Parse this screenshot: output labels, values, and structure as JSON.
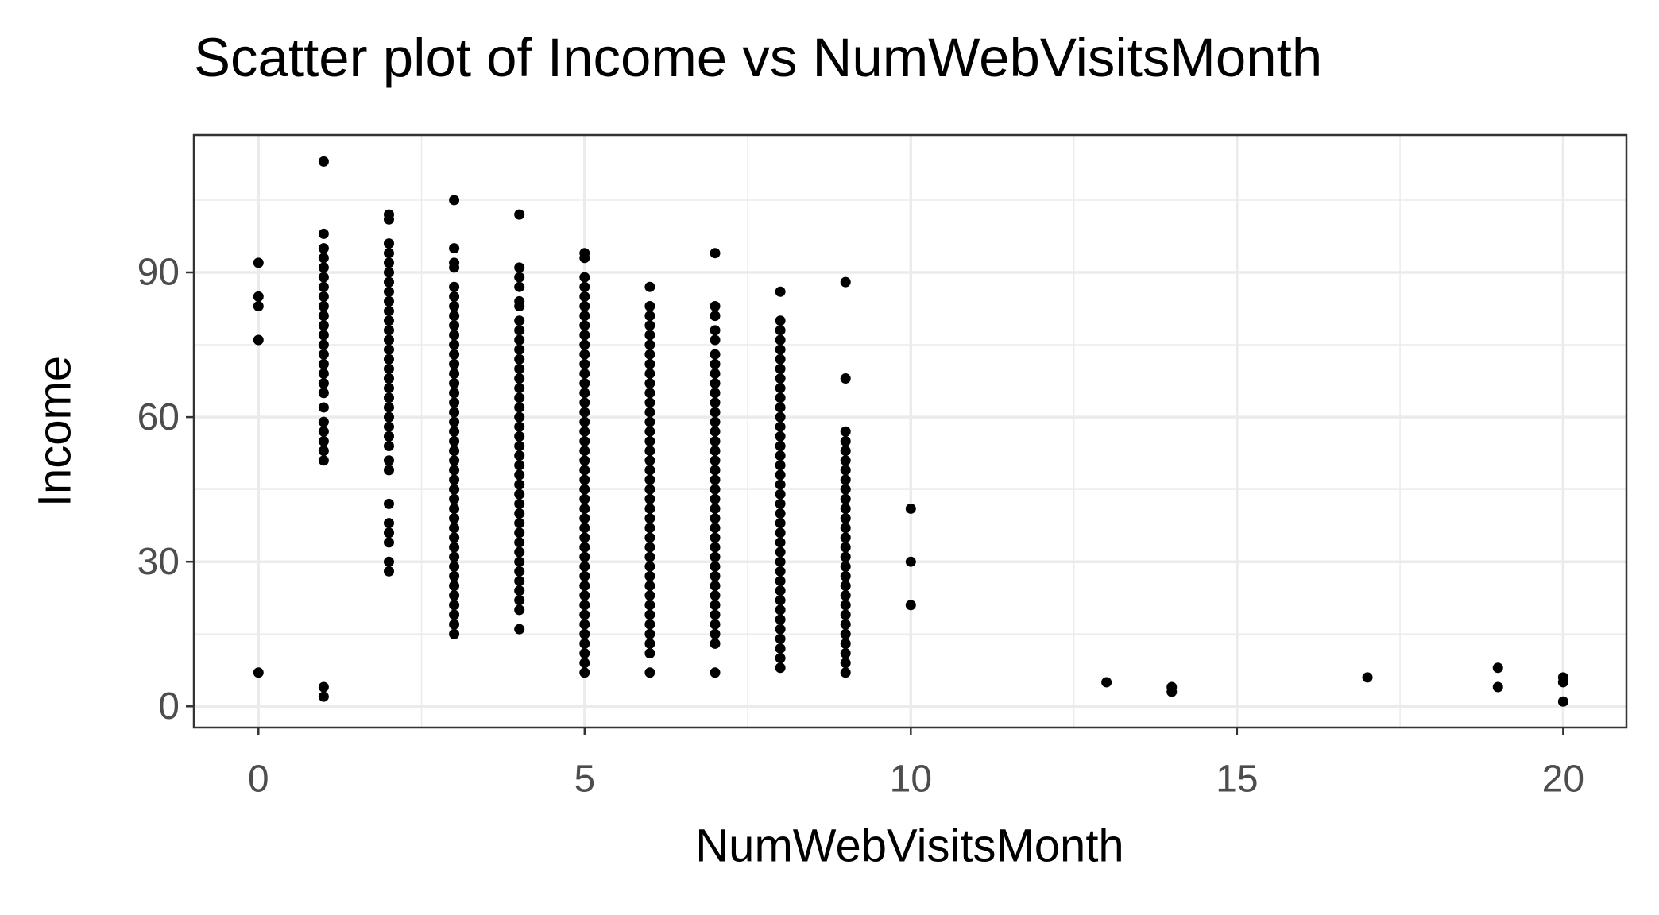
{
  "chart_data": {
    "type": "scatter",
    "title": "Scatter plot of Income vs NumWebVisitsMonth",
    "x_label": "NumWebVisitsMonth",
    "y_label": "Income",
    "color": "#000000",
    "xlim": [
      -0.99,
      20.97
    ],
    "ylim": [
      -4.4,
      118.5
    ],
    "xticks": [
      0,
      5,
      10,
      15,
      20
    ],
    "yticks": [
      0,
      30,
      60,
      90
    ],
    "minor_xticks": [
      2.5,
      7.5,
      12.5,
      17.5
    ],
    "minor_yticks": [
      15,
      45,
      75,
      105
    ],
    "grid": true,
    "x": [
      0,
      0,
      0,
      0,
      0,
      1,
      1,
      1,
      1,
      1,
      1,
      1,
      1,
      1,
      1,
      1,
      1,
      1,
      1,
      1,
      1,
      1,
      1,
      1,
      1,
      1,
      1,
      1,
      1,
      1,
      1,
      2,
      2,
      2,
      2,
      2,
      2,
      2,
      2,
      2,
      2,
      2,
      2,
      2,
      2,
      2,
      2,
      2,
      2,
      2,
      2,
      2,
      2,
      2,
      2,
      2,
      2,
      2,
      2,
      2,
      2,
      2,
      2,
      3,
      3,
      3,
      3,
      3,
      3,
      3,
      3,
      3,
      3,
      3,
      3,
      3,
      3,
      3,
      3,
      3,
      3,
      3,
      3,
      3,
      3,
      3,
      3,
      3,
      3,
      3,
      3,
      3,
      3,
      3,
      3,
      3,
      3,
      3,
      3,
      3,
      3,
      3,
      3,
      3,
      4,
      4,
      4,
      4,
      4,
      4,
      4,
      4,
      4,
      4,
      4,
      4,
      4,
      4,
      4,
      4,
      4,
      4,
      4,
      4,
      4,
      4,
      4,
      4,
      4,
      4,
      4,
      4,
      4,
      4,
      4,
      4,
      4,
      4,
      4,
      4,
      4,
      4,
      5,
      5,
      5,
      5,
      5,
      5,
      5,
      5,
      5,
      5,
      5,
      5,
      5,
      5,
      5,
      5,
      5,
      5,
      5,
      5,
      5,
      5,
      5,
      5,
      5,
      5,
      5,
      5,
      5,
      5,
      5,
      5,
      5,
      5,
      5,
      5,
      5,
      5,
      5,
      5,
      5,
      5,
      5,
      5,
      6,
      6,
      6,
      6,
      6,
      6,
      6,
      6,
      6,
      6,
      6,
      6,
      6,
      6,
      6,
      6,
      6,
      6,
      6,
      6,
      6,
      6,
      6,
      6,
      6,
      6,
      6,
      6,
      6,
      6,
      6,
      6,
      6,
      6,
      6,
      6,
      6,
      6,
      6,
      7,
      7,
      7,
      7,
      7,
      7,
      7,
      7,
      7,
      7,
      7,
      7,
      7,
      7,
      7,
      7,
      7,
      7,
      7,
      7,
      7,
      7,
      7,
      7,
      7,
      7,
      7,
      7,
      7,
      7,
      7,
      7,
      7,
      7,
      7,
      7,
      7,
      8,
      8,
      8,
      8,
      8,
      8,
      8,
      8,
      8,
      8,
      8,
      8,
      8,
      8,
      8,
      8,
      8,
      8,
      8,
      8,
      8,
      8,
      8,
      8,
      8,
      8,
      8,
      8,
      8,
      8,
      8,
      8,
      8,
      8,
      8,
      8,
      8,
      8,
      9,
      9,
      9,
      9,
      9,
      9,
      9,
      9,
      9,
      9,
      9,
      9,
      9,
      9,
      9,
      9,
      9,
      9,
      9,
      9,
      9,
      9,
      9,
      9,
      9,
      9,
      9,
      9,
      10,
      10,
      10,
      13,
      14,
      14,
      17,
      19,
      19,
      20,
      20,
      20
    ],
    "values": [
      92,
      85,
      83,
      76,
      7,
      113,
      98,
      95,
      93,
      91,
      89,
      87,
      85,
      83,
      81,
      79,
      77,
      75,
      73,
      71,
      69,
      67,
      65,
      62,
      59,
      57,
      55,
      53,
      51,
      4,
      2,
      102,
      101,
      96,
      94,
      92,
      90,
      88,
      86,
      84,
      82,
      80,
      78,
      76,
      74,
      72,
      70,
      68,
      66,
      64,
      62,
      60,
      58,
      56,
      54,
      51,
      49,
      42,
      38,
      36,
      34,
      30,
      28,
      105,
      95,
      92,
      91,
      87,
      85,
      83,
      81,
      79,
      77,
      75,
      73,
      71,
      69,
      67,
      65,
      63,
      61,
      59,
      57,
      55,
      53,
      51,
      49,
      47,
      45,
      43,
      41,
      39,
      37,
      35,
      33,
      31,
      29,
      27,
      25,
      23,
      21,
      19,
      17,
      15,
      102,
      91,
      89,
      87,
      84,
      83,
      80,
      78,
      76,
      74,
      72,
      70,
      68,
      66,
      64,
      62,
      60,
      58,
      56,
      54,
      52,
      50,
      48,
      46,
      44,
      42,
      40,
      38,
      36,
      34,
      32,
      30,
      28,
      26,
      24,
      22,
      20,
      16,
      94,
      93,
      89,
      87,
      85,
      83,
      81,
      79,
      77,
      75,
      73,
      71,
      69,
      67,
      65,
      63,
      61,
      59,
      57,
      55,
      53,
      51,
      49,
      47,
      45,
      43,
      41,
      39,
      37,
      35,
      33,
      31,
      29,
      27,
      25,
      23,
      21,
      19,
      17,
      15,
      13,
      11,
      9,
      7,
      87,
      83,
      81,
      79,
      77,
      75,
      73,
      71,
      69,
      67,
      65,
      63,
      61,
      59,
      57,
      55,
      53,
      51,
      49,
      47,
      45,
      43,
      41,
      39,
      37,
      35,
      33,
      31,
      29,
      27,
      25,
      23,
      21,
      19,
      17,
      15,
      13,
      11,
      7,
      94,
      83,
      81,
      78,
      76,
      73,
      71,
      69,
      67,
      65,
      63,
      61,
      59,
      57,
      55,
      53,
      51,
      49,
      47,
      45,
      43,
      41,
      39,
      37,
      35,
      33,
      31,
      29,
      27,
      25,
      23,
      21,
      19,
      17,
      15,
      13,
      7,
      86,
      80,
      78,
      76,
      74,
      72,
      70,
      68,
      66,
      64,
      62,
      60,
      58,
      56,
      54,
      52,
      50,
      48,
      46,
      44,
      42,
      40,
      38,
      36,
      34,
      32,
      30,
      28,
      26,
      24,
      22,
      20,
      18,
      16,
      14,
      12,
      10,
      8,
      88,
      68,
      57,
      55,
      53,
      51,
      49,
      47,
      45,
      43,
      41,
      39,
      37,
      35,
      33,
      31,
      29,
      27,
      25,
      23,
      21,
      19,
      17,
      15,
      13,
      11,
      9,
      7,
      41,
      30,
      21,
      5,
      4,
      3,
      6,
      8,
      4,
      6,
      5,
      1
    ]
  }
}
